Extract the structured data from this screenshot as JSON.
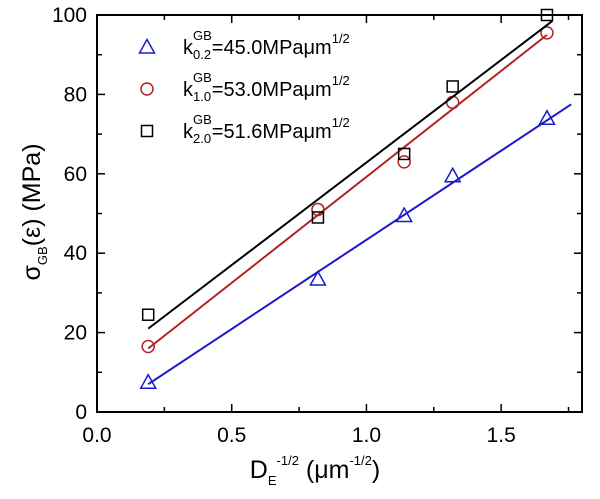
{
  "chart_data": {
    "type": "scatter",
    "xlabel": {
      "main": "D",
      "sub": "E",
      "sup": "-1/2",
      "unit_prefix": " (",
      "unit": "μm",
      "unit_sup": "-1/2",
      "unit_suffix": ")"
    },
    "ylabel": {
      "main": "σ",
      "sub": "GB",
      "rest": "(ε) (MPa)"
    },
    "xlim": [
      0.0,
      1.8
    ],
    "ylim": [
      0,
      100
    ],
    "x_ticks": [
      0.0,
      0.5,
      1.0,
      1.5
    ],
    "x_tick_labels": [
      "0.0",
      "0.5",
      "1.0",
      "1.5"
    ],
    "y_ticks": [
      0,
      20,
      40,
      60,
      80,
      100
    ],
    "y_tick_labels": [
      "0",
      "20",
      "40",
      "60",
      "80",
      "100"
    ],
    "legend_position": "top-left",
    "series": [
      {
        "name": "k0.2GB=45.0MPaμm1/2",
        "label_parts": {
          "k": "k",
          "sup": "GB",
          "sub": "0.2",
          "value": "=45.0MPa",
          "mu": "μm",
          "exp": "1/2"
        },
        "marker": "triangle",
        "color": "#1a1acc",
        "x": [
          0.19,
          0.82,
          1.14,
          1.32,
          1.67
        ],
        "y": [
          7.5,
          33.5,
          49.5,
          59.5,
          74.0
        ],
        "fit": {
          "x": [
            0.19,
            1.76
          ],
          "y": [
            7.0,
            77.5
          ]
        }
      },
      {
        "name": "k1.0GB=53.0MPaμm1/2",
        "label_parts": {
          "k": "k",
          "sup": "GB",
          "sub": "1.0",
          "value": "=53.0MPa",
          "mu": "μm",
          "exp": "1/2"
        },
        "marker": "circle",
        "color": "#b22222",
        "x": [
          0.19,
          0.82,
          1.14,
          1.32,
          1.67
        ],
        "y": [
          16.5,
          51.0,
          63.0,
          78.0,
          95.5
        ],
        "fit": {
          "x": [
            0.19,
            1.67
          ],
          "y": [
            16.0,
            95.0
          ]
        }
      },
      {
        "name": "k2.0GB=51.6MPaμm1/2",
        "label_parts": {
          "k": "k",
          "sup": "GB",
          "sub": "2.0",
          "value": "=51.6MPa",
          "mu": "μm",
          "exp": "1/2"
        },
        "marker": "square",
        "color": "#000000",
        "x": [
          0.19,
          0.82,
          1.14,
          1.32,
          1.67
        ],
        "y": [
          24.5,
          49.0,
          65.0,
          82.0,
          100.0
        ],
        "fit": {
          "x": [
            0.19,
            1.69
          ],
          "y": [
            21.0,
            98.5
          ]
        }
      }
    ]
  }
}
